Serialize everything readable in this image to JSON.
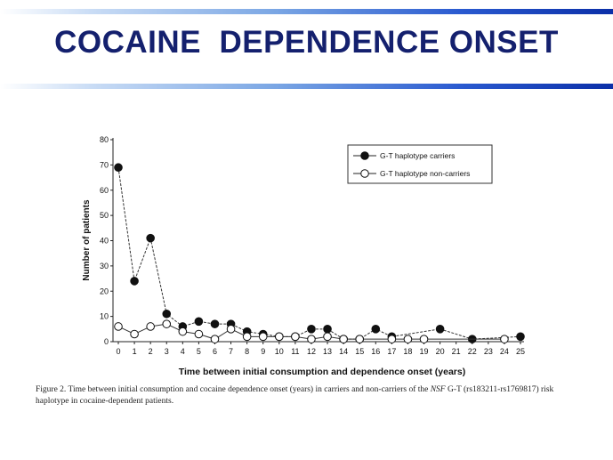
{
  "slide": {
    "title": "COCAINE  DEPENDENCE ONSET",
    "caption": {
      "part1": "Figure 2. Time between initial consumption and cocaine dependence onset (years) in carriers and non-carriers of the ",
      "gene": "NSF",
      "part2": " G-T (rs183211-rs1769817) risk haplotype in cocaine-dependent patients."
    }
  },
  "chart_data": {
    "type": "line",
    "xlabel": "Time between initial consumption and dependence onset (years)",
    "ylabel": "Number of patients",
    "xlim": [
      0,
      25
    ],
    "ylim": [
      0,
      80
    ],
    "x_ticks": [
      0,
      1,
      2,
      3,
      4,
      5,
      6,
      7,
      8,
      9,
      10,
      11,
      12,
      13,
      14,
      15,
      16,
      17,
      18,
      19,
      20,
      21,
      22,
      23,
      24,
      25
    ],
    "y_ticks": [
      0,
      10,
      20,
      30,
      40,
      50,
      60,
      70,
      80
    ],
    "grid": false,
    "legend_position": "top-right",
    "series": [
      {
        "name": "G-T haplotype carriers",
        "marker": "filled-circle",
        "color": "#000000",
        "points": [
          [
            0,
            69
          ],
          [
            1,
            24
          ],
          [
            2,
            41
          ],
          [
            3,
            11
          ],
          [
            4,
            6
          ],
          [
            5,
            8
          ],
          [
            6,
            7
          ],
          [
            7,
            7
          ],
          [
            8,
            4
          ],
          [
            9,
            3
          ],
          [
            10,
            2
          ],
          [
            11,
            2
          ],
          [
            12,
            5
          ],
          [
            13,
            5
          ],
          [
            14,
            1
          ],
          [
            15,
            1
          ],
          [
            16,
            5
          ],
          [
            17,
            2
          ],
          [
            20,
            5
          ],
          [
            22,
            1
          ],
          [
            25,
            2
          ]
        ]
      },
      {
        "name": "G-T haplotype non-carriers",
        "marker": "open-circle",
        "color": "#000000",
        "points": [
          [
            0,
            6
          ],
          [
            1,
            3
          ],
          [
            2,
            6
          ],
          [
            3,
            7
          ],
          [
            4,
            4
          ],
          [
            5,
            3
          ],
          [
            6,
            1
          ],
          [
            7,
            5
          ],
          [
            8,
            2
          ],
          [
            9,
            2
          ],
          [
            10,
            2
          ],
          [
            11,
            2
          ],
          [
            12,
            1
          ],
          [
            13,
            2
          ],
          [
            14,
            1
          ],
          [
            15,
            1
          ],
          [
            17,
            1
          ],
          [
            18,
            1
          ],
          [
            19,
            1
          ],
          [
            24,
            1
          ]
        ]
      }
    ]
  }
}
